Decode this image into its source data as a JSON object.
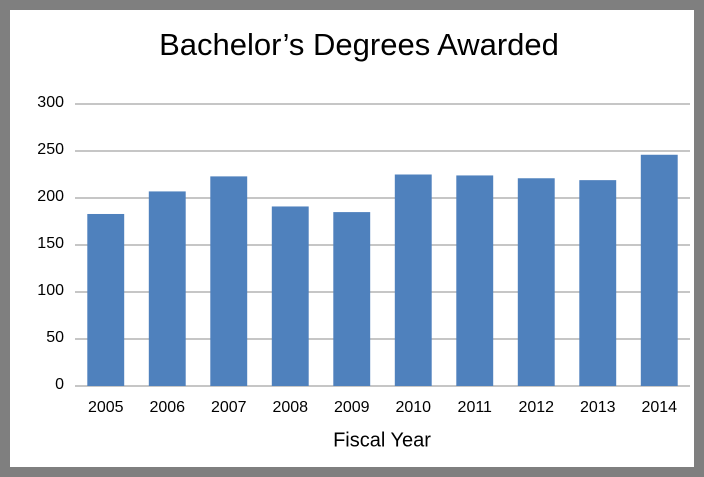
{
  "chart_data": {
    "type": "bar",
    "title": "Bachelor’s Degrees Awarded",
    "x_label": "Fiscal Year",
    "categories": [
      "2005",
      "2006",
      "2007",
      "2008",
      "2009",
      "2010",
      "2011",
      "2012",
      "2013",
      "2014"
    ],
    "values": [
      183,
      207,
      223,
      191,
      185,
      225,
      224,
      221,
      219,
      246
    ],
    "color": "#4f81bd",
    "ylim": [
      0,
      300
    ],
    "yticks": [
      0,
      50,
      100,
      150,
      200,
      250,
      300
    ],
    "grid": true
  }
}
